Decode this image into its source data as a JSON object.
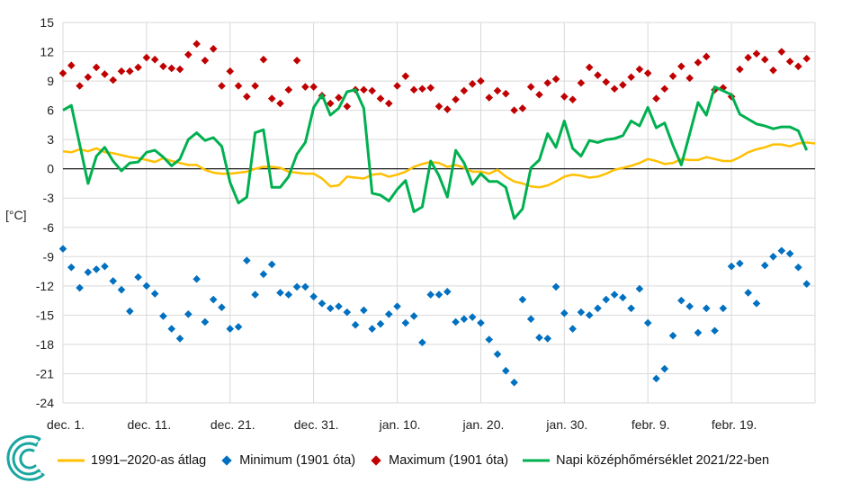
{
  "chart_data": {
    "type": "line",
    "ylabel": "[°C]",
    "ylim": [
      -24,
      15
    ],
    "yticks": [
      15,
      12,
      9,
      6,
      3,
      0,
      -3,
      -6,
      -9,
      -12,
      -15,
      -18,
      -21,
      -24
    ],
    "xticks": [
      {
        "day": 0,
        "label": "dec. 1."
      },
      {
        "day": 10,
        "label": "dec. 11."
      },
      {
        "day": 20,
        "label": "dec. 21."
      },
      {
        "day": 30,
        "label": "dec. 31."
      },
      {
        "day": 40,
        "label": "jan. 10."
      },
      {
        "day": 50,
        "label": "jan. 20."
      },
      {
        "day": 60,
        "label": "jan. 30."
      },
      {
        "day": 70,
        "label": "febr. 9."
      },
      {
        "day": 80,
        "label": "febr. 19."
      }
    ],
    "grid": true,
    "legend_position": "bottom",
    "colors": {
      "avg": "#ffc000",
      "min": "#0070c0",
      "max": "#c00000",
      "daily": "#00b050"
    },
    "series": [
      {
        "key": "avg",
        "name": "1991–2020-as átlag",
        "values": [
          1.8,
          1.7,
          2.0,
          1.8,
          2.1,
          1.7,
          1.6,
          1.4,
          1.2,
          1.1,
          0.9,
          0.7,
          1.1,
          0.8,
          0.6,
          0.4,
          0.4,
          -0.1,
          -0.4,
          -0.5,
          -0.5,
          -0.4,
          -0.3,
          0.0,
          0.2,
          0.2,
          0.1,
          -0.3,
          -0.4,
          -0.5,
          -0.5,
          -1.0,
          -1.8,
          -1.7,
          -0.8,
          -0.9,
          -1.0,
          -0.6,
          -0.5,
          -0.8,
          -0.6,
          -0.3,
          0.2,
          0.5,
          0.7,
          0.6,
          0.2,
          0.4,
          0.1,
          -0.3,
          -0.3,
          -0.5,
          -0.1,
          -0.8,
          -1.3,
          -1.5,
          -1.8,
          -1.9,
          -1.7,
          -1.3,
          -0.8,
          -0.6,
          -0.7,
          -0.9,
          -0.8,
          -0.5,
          -0.1,
          0.1,
          0.3,
          0.6,
          1.0,
          0.8,
          0.5,
          0.6,
          1.0,
          0.9,
          0.9,
          1.2,
          1.0,
          0.8,
          0.8,
          1.2,
          1.7,
          2.0,
          2.2,
          2.5,
          2.5,
          2.3,
          2.6,
          2.7,
          2.6
        ]
      },
      {
        "key": "min",
        "name": "Minimum (1901 óta)",
        "values": [
          -8.2,
          -10.1,
          -12.2,
          -10.6,
          -10.3,
          -10.0,
          -11.5,
          -12.4,
          -14.6,
          -11.1,
          -12.0,
          -12.8,
          -15.1,
          -16.4,
          -17.4,
          -14.9,
          -11.3,
          -15.7,
          -13.4,
          -14.2,
          -16.4,
          -16.2,
          -9.4,
          -12.9,
          -10.8,
          -9.8,
          -12.7,
          -12.9,
          -12.1,
          -12.1,
          -13.1,
          -13.8,
          -14.3,
          -14.1,
          -14.7,
          -16.0,
          -14.5,
          -16.4,
          -15.9,
          -14.9,
          -14.1,
          -15.8,
          -15.1,
          -17.8,
          -12.9,
          -12.9,
          -12.6,
          -15.7,
          -15.4,
          -15.2,
          -15.8,
          -17.5,
          -19.0,
          -20.7,
          -21.9,
          -13.4,
          -15.4,
          -17.3,
          -17.4,
          -12.1,
          -14.8,
          -16.4,
          -14.7,
          -15.0,
          -14.3,
          -13.4,
          -12.9,
          -13.2,
          -14.3,
          -12.3,
          -15.8,
          -21.5,
          -20.5,
          -17.1,
          -13.5,
          -14.1,
          -16.8,
          -14.3,
          -16.6,
          -14.3,
          -10.0,
          -9.7,
          -12.7,
          -13.8,
          -9.9,
          -9.0,
          -8.4,
          -8.7,
          -10.1,
          -11.8
        ]
      },
      {
        "key": "max",
        "name": "Maximum (1901 óta)",
        "values": [
          9.8,
          10.6,
          8.5,
          9.4,
          10.4,
          9.7,
          9.1,
          10.0,
          10.0,
          10.4,
          11.4,
          11.2,
          10.5,
          10.3,
          10.2,
          11.7,
          12.8,
          11.1,
          12.3,
          8.5,
          10.0,
          8.5,
          7.4,
          8.5,
          11.2,
          7.2,
          6.7,
          8.1,
          11.1,
          8.4,
          8.4,
          7.5,
          6.7,
          7.3,
          6.4,
          8.1,
          8.1,
          8.0,
          7.2,
          6.7,
          8.5,
          9.5,
          8.1,
          8.2,
          8.3,
          6.4,
          6.1,
          7.1,
          8.0,
          8.7,
          9.0,
          7.3,
          8.0,
          7.7,
          6.0,
          6.2,
          8.4,
          7.6,
          8.8,
          9.2,
          7.4,
          7.1,
          8.8,
          10.4,
          9.6,
          8.9,
          8.2,
          8.6,
          9.4,
          10.2,
          9.8,
          7.2,
          8.2,
          9.5,
          10.5,
          9.3,
          10.9,
          11.5,
          8.1,
          8.3,
          7.4,
          10.2,
          11.4,
          11.8,
          11.2,
          10.1,
          12.0,
          11.0,
          10.5,
          11.3
        ]
      },
      {
        "key": "daily",
        "name": "Napi középhőmérséklet 2021/22-ben",
        "values": [
          6.0,
          6.5,
          2.5,
          -1.5,
          1.3,
          2.2,
          0.8,
          -0.2,
          0.6,
          0.7,
          1.7,
          1.9,
          1.2,
          0.3,
          1.0,
          3.0,
          3.7,
          2.9,
          3.2,
          2.3,
          -1.4,
          -3.5,
          -2.9,
          3.7,
          4.0,
          -1.9,
          -1.9,
          -0.8,
          1.5,
          2.7,
          6.3,
          7.6,
          5.5,
          6.2,
          7.9,
          8.1,
          6.2,
          -2.5,
          -2.7,
          -3.3,
          -2.1,
          -1.2,
          -4.4,
          -3.9,
          0.8,
          -0.7,
          -2.9,
          1.9,
          0.6,
          -1.6,
          -0.5,
          -1.3,
          -1.3,
          -1.9,
          -5.1,
          -4.1,
          0.1,
          0.9,
          3.6,
          2.2,
          4.9,
          2.1,
          1.3,
          2.9,
          2.7,
          3.0,
          3.1,
          3.4,
          4.9,
          4.4,
          6.3,
          4.2,
          4.7,
          2.4,
          0.4,
          3.6,
          6.8,
          5.5,
          8.4,
          8.0,
          7.6,
          5.6,
          5.1,
          4.6,
          4.4,
          4.1,
          4.3,
          4.3,
          3.9,
          1.9
        ]
      }
    ]
  },
  "legend": [
    {
      "key": "avg",
      "label": "1991–2020-as átlag"
    },
    {
      "key": "min",
      "label": "Minimum (1901 óta)"
    },
    {
      "key": "max",
      "label": "Maximum (1901 óta)"
    },
    {
      "key": "daily",
      "label": "Napi középhőmérséklet 2021/22-ben"
    }
  ]
}
